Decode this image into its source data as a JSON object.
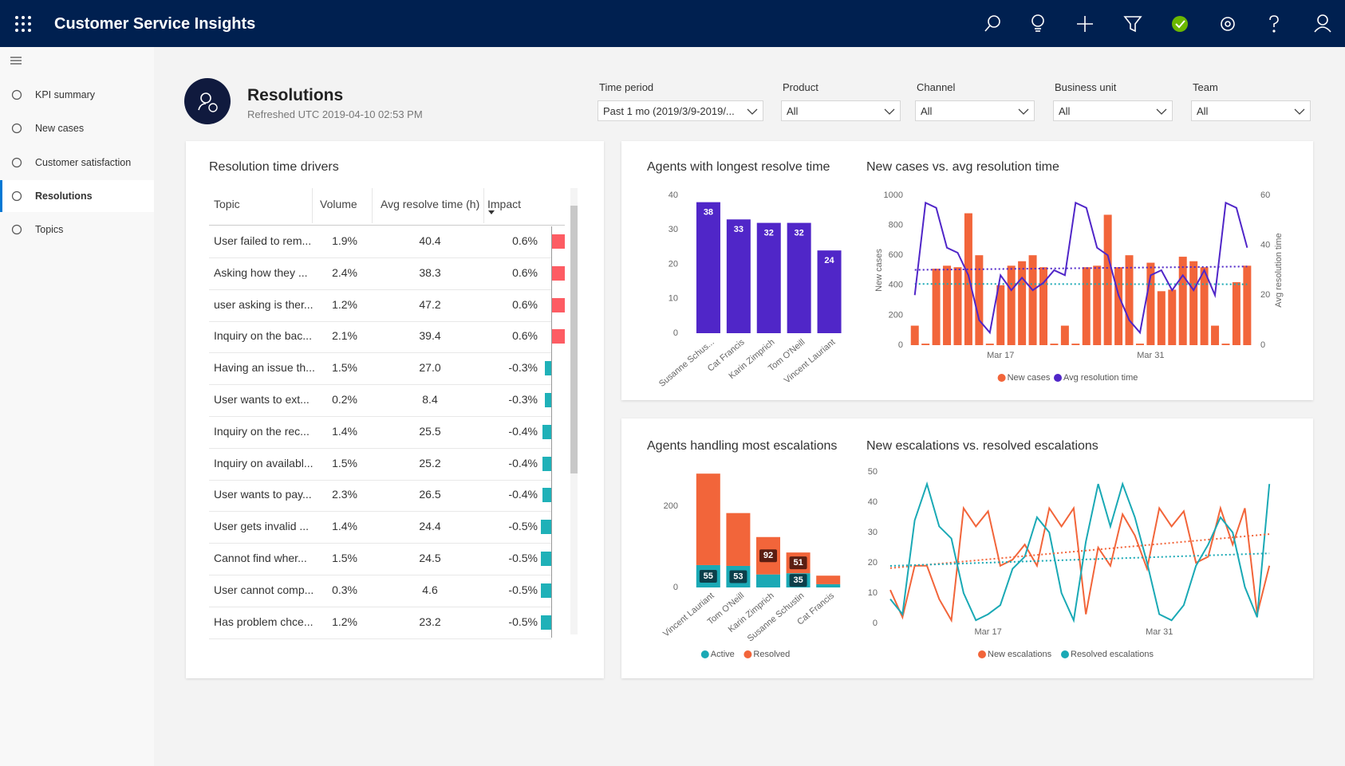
{
  "app": {
    "title": "Customer Service Insights"
  },
  "nav": {
    "items": [
      "KPI summary",
      "New cases",
      "Customer satisfaction",
      "Resolutions",
      "Topics"
    ],
    "active": 3
  },
  "header": {
    "title": "Resolutions",
    "subtitle": "Refreshed UTC 2019-04-10 02:53 PM"
  },
  "filters": [
    {
      "label": "Time period",
      "value": "Past 1 mo (2019/3/9-2019/..."
    },
    {
      "label": "Product",
      "value": "All"
    },
    {
      "label": "Channel",
      "value": "All"
    },
    {
      "label": "Business unit",
      "value": "All"
    },
    {
      "label": "Team",
      "value": "All"
    }
  ],
  "table": {
    "title": "Resolution time drivers",
    "columns": [
      "Topic",
      "Volume",
      "Avg resolve time (h)",
      "Impact"
    ],
    "rows": [
      [
        "User failed to rem...",
        "1.9%",
        "40.4"
      ],
      [
        "Asking how they ...",
        "2.4%",
        "38.3"
      ],
      [
        "user asking is ther...",
        "1.2%",
        "47.2"
      ],
      [
        "Inquiry on the bac...",
        "2.1%",
        "39.4"
      ],
      [
        "Having an issue th...",
        "1.5%",
        "27.0"
      ],
      [
        "User wants to ext...",
        "0.2%",
        "8.4"
      ],
      [
        "Inquiry on the rec...",
        "1.4%",
        "25.5"
      ],
      [
        "Inquiry on availabl...",
        "1.5%",
        "25.2"
      ],
      [
        "User wants to pay...",
        "2.3%",
        "26.5"
      ],
      [
        "User gets invalid ...",
        "1.4%",
        "24.4"
      ],
      [
        "Cannot find wher...",
        "1.5%",
        "24.5"
      ],
      [
        "User cannot comp...",
        "0.3%",
        "4.6"
      ],
      [
        "Has problem chce...",
        "1.2%",
        "23.2"
      ]
    ],
    "impact": {
      "values": [
        0.6,
        0.6,
        0.6,
        0.6,
        -0.3,
        -0.3,
        -0.4,
        -0.4,
        -0.4,
        -0.5,
        -0.5,
        -0.5,
        -0.5
      ],
      "value_labels": [
        "0.6%",
        "0.6%",
        "0.6%",
        "0.6%",
        "-0.3%",
        "-0.3%",
        "-0.4%",
        "-0.4%",
        "-0.4%",
        "-0.5%",
        "-0.5%",
        "-0.5%",
        "-0.5%"
      ],
      "positive_color": "#fd5c63",
      "negative_color": "#1fb1b8"
    }
  },
  "chart_data": [
    {
      "type": "bar",
      "title": "Agents with longest resolve time",
      "categories": [
        "Susanne Schus...",
        "Cat Francis",
        "Karin Zimprich",
        "Tom O'Neill",
        "Vincent Lauriant"
      ],
      "values": [
        38,
        33,
        32,
        32,
        24
      ],
      "color": "#5026c8",
      "ylim": [
        0,
        40
      ],
      "yticks": [
        0,
        10,
        20,
        30,
        40
      ],
      "data_labels": true
    },
    {
      "type": "bar_line",
      "title": "New cases vs. avg resolution time",
      "categories": [
        null,
        null,
        null,
        null,
        null,
        null,
        null,
        null,
        "Mar 17",
        null,
        null,
        null,
        null,
        null,
        null,
        null,
        null,
        null,
        null,
        null,
        null,
        null,
        "Mar 31",
        null,
        null,
        null,
        null,
        null,
        null,
        null,
        null,
        null
      ],
      "ylabel": "New cases",
      "y2label": "Avg resolution time",
      "series": [
        {
          "name": "New cases",
          "type": "bar",
          "color": "#f2653a",
          "values": [
            130,
            10,
            510,
            530,
            520,
            880,
            600,
            10,
            400,
            530,
            560,
            600,
            520,
            10,
            130,
            10,
            520,
            530,
            870,
            520,
            600,
            10,
            550,
            360,
            370,
            590,
            560,
            520,
            130,
            10,
            420,
            530
          ]
        },
        {
          "name": "Avg resolution time",
          "type": "line",
          "axis": "y2",
          "color": "#5026c8",
          "values": [
            20,
            57,
            55,
            39,
            37,
            28,
            10,
            5,
            28,
            22,
            27,
            22,
            25,
            30,
            28,
            57,
            55,
            39,
            36,
            20,
            10,
            5,
            28,
            30,
            22,
            28,
            22,
            30,
            20,
            57,
            55,
            39
          ]
        }
      ],
      "ylim": [
        0,
        1000
      ],
      "yticks": [
        0,
        200,
        400,
        600,
        800,
        1000
      ],
      "y2lim": [
        0,
        60
      ],
      "y2ticks": [
        0,
        20,
        40,
        60
      ],
      "trend_lines": true
    },
    {
      "type": "stacked_bar",
      "title": "Agents handling most escalations",
      "categories": [
        "Vincent Lauriant",
        "Tom O'Neill",
        "Karin Zimprich",
        "Susanne Schustin",
        "Cat Francis"
      ],
      "series": [
        {
          "name": "Active",
          "color": "#1aa9b5",
          "label_color": "#0c3f4a",
          "values": [
            55,
            53,
            32,
            35,
            8
          ],
          "value_labels": [
            "55",
            "53",
            null,
            "35",
            null
          ]
        },
        {
          "name": "Resolved",
          "color": "#f2653a",
          "label_color": "#5a1e12",
          "values": [
            225,
            130,
            92,
            51,
            21
          ],
          "value_labels": [
            null,
            null,
            "92",
            "51",
            null
          ]
        }
      ],
      "ylim": [
        0,
        300
      ],
      "yticks": [
        0,
        200
      ]
    },
    {
      "type": "line",
      "title": "New escalations vs. resolved escalations",
      "categories": [
        null,
        null,
        null,
        null,
        null,
        null,
        null,
        null,
        "Mar 17",
        null,
        null,
        null,
        null,
        null,
        null,
        null,
        null,
        null,
        null,
        null,
        null,
        null,
        "Mar 31",
        null,
        null,
        null,
        null,
        null,
        null,
        null,
        null,
        null
      ],
      "series": [
        {
          "name": "New escalations",
          "color": "#f2653a",
          "values": [
            11,
            2,
            19,
            19,
            8,
            1,
            38,
            32,
            37,
            19,
            21,
            26,
            19,
            38,
            32,
            38,
            3,
            25,
            19,
            36,
            29,
            18,
            38,
            32,
            37,
            20,
            22,
            38,
            26,
            38,
            3,
            19
          ]
        },
        {
          "name": "Resolved escalations",
          "color": "#1aa9b5",
          "values": [
            8,
            3,
            34,
            46,
            32,
            28,
            10,
            1,
            3,
            6,
            18,
            22,
            35,
            30,
            10,
            1,
            27,
            46,
            32,
            46,
            35,
            20,
            3,
            1,
            6,
            19,
            26,
            35,
            30,
            12,
            2,
            46
          ]
        }
      ],
      "ylim": [
        0,
        50
      ],
      "yticks": [
        0,
        10,
        20,
        30,
        40,
        50
      ],
      "trend_lines": true
    }
  ]
}
